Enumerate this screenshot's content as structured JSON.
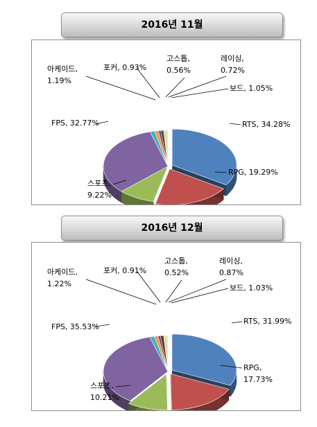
{
  "chart_data": [
    {
      "type": "pie",
      "title": "2016년 11월",
      "slices": [
        {
          "label": "RTS",
          "value": 34.28,
          "label_lines": [
            "RTS, 34.28%"
          ],
          "color": "#4f81bd"
        },
        {
          "label": "RPG",
          "value": 19.29,
          "label_lines": [
            "RPG, 19.29%"
          ],
          "color": "#c0504d"
        },
        {
          "label": "스포츠",
          "value": 9.22,
          "label_lines": [
            "스포츠,",
            "9.22%"
          ],
          "color": "#9bbb59"
        },
        {
          "label": "FPS",
          "value": 32.77,
          "label_lines": [
            "FPS, 32.77%"
          ],
          "color": "#8064a2"
        },
        {
          "label": "아케이드",
          "value": 1.19,
          "label_lines": [
            "아케이드,",
            "1.19%"
          ],
          "color": "#4bacc6"
        },
        {
          "label": "포커",
          "value": 0.93,
          "label_lines": [
            "포커, 0.93%"
          ],
          "color": "#f79646"
        },
        {
          "label": "고스톱",
          "value": 0.56,
          "label_lines": [
            "고스톱,",
            "0.56%"
          ],
          "color": "#2c4d75"
        },
        {
          "label": "레이싱",
          "value": 0.72,
          "label_lines": [
            "레이싱,",
            "0.72%"
          ],
          "color": "#772c2a"
        },
        {
          "label": "보드",
          "value": 1.05,
          "label_lines": [
            "보드, 1.05%"
          ],
          "color": "#d9e4a8"
        }
      ]
    },
    {
      "type": "pie",
      "title": "2016년 12월",
      "slices": [
        {
          "label": "RTS",
          "value": 31.99,
          "label_lines": [
            "RTS, 31.99%"
          ],
          "color": "#4f81bd"
        },
        {
          "label": "RPG",
          "value": 17.73,
          "label_lines": [
            "RPG,",
            "17.73%"
          ],
          "color": "#c0504d"
        },
        {
          "label": "스포츠",
          "value": 10.21,
          "label_lines": [
            "스포츠,",
            "10.21%"
          ],
          "color": "#9bbb59"
        },
        {
          "label": "FPS",
          "value": 35.53,
          "label_lines": [
            "FPS, 35.53%"
          ],
          "color": "#8064a2"
        },
        {
          "label": "아케이드",
          "value": 1.22,
          "label_lines": [
            "아케이드,",
            "1.22%"
          ],
          "color": "#4bacc6"
        },
        {
          "label": "포커",
          "value": 0.91,
          "label_lines": [
            "포커, 0.91%"
          ],
          "color": "#f79646"
        },
        {
          "label": "고스톱",
          "value": 0.52,
          "label_lines": [
            "고스톱,",
            "0.52%"
          ],
          "color": "#2c4d75"
        },
        {
          "label": "레이싱",
          "value": 0.87,
          "label_lines": [
            "레이싱,",
            "0.87%"
          ],
          "color": "#772c2a"
        },
        {
          "label": "보드",
          "value": 1.03,
          "label_lines": [
            "보드, 1.03%"
          ],
          "color": "#d9e4a8"
        }
      ]
    }
  ]
}
